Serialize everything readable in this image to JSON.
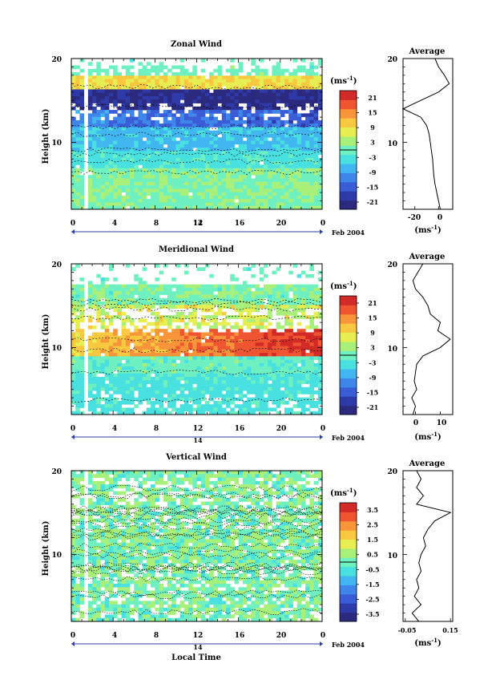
{
  "page": {
    "time_axis_label": "Local Time"
  },
  "chart_data": [
    {
      "id": "zonal",
      "type": "heatmap",
      "title": "Zonal Wind",
      "ylabel": "Height (km)",
      "xlabel": "",
      "x_ticks": [
        "0",
        "4",
        "8",
        "12",
        "16",
        "20",
        "0"
      ],
      "y_ticks": [
        "10",
        "20"
      ],
      "ylim": [
        2,
        20
      ],
      "xlim_hours": [
        0,
        24
      ],
      "date_axis": {
        "day": "14",
        "month_year": "Feb 2004"
      },
      "colorbar": {
        "unit": "(ms",
        "unit_exp": "-1",
        "unit_close": ")",
        "ticks": [
          "21",
          "15",
          "9",
          "3",
          "-3",
          "-9",
          "-15",
          "-21"
        ],
        "range": [
          -24,
          24
        ]
      },
      "average_panel": {
        "title": "Average",
        "xlabel": "(ms",
        "xlabel_exp": "-1",
        "xlabel_close": ")",
        "x_ticks": [
          "-20",
          "0"
        ],
        "y_ticks": [
          "10",
          "20"
        ],
        "xlim": [
          -30,
          12
        ],
        "profile": [
          {
            "h": 2.0,
            "v": 1.5
          },
          {
            "h": 3.0,
            "v": 0.0
          },
          {
            "h": 4.0,
            "v": -1.5
          },
          {
            "h": 5.0,
            "v": -3.0
          },
          {
            "h": 6.0,
            "v": -4.0
          },
          {
            "h": 7.0,
            "v": -4.5
          },
          {
            "h": 8.0,
            "v": -5.0
          },
          {
            "h": 9.0,
            "v": -6.0
          },
          {
            "h": 10.0,
            "v": -7.0
          },
          {
            "h": 11.0,
            "v": -8.0
          },
          {
            "h": 12.0,
            "v": -10.0
          },
          {
            "h": 13.0,
            "v": -15.0
          },
          {
            "h": 14.0,
            "v": -30.0
          },
          {
            "h": 15.0,
            "v": -15.0
          },
          {
            "h": 16.0,
            "v": 0.0
          },
          {
            "h": 17.0,
            "v": 9.0
          },
          {
            "h": 18.0,
            "v": 5.0
          },
          {
            "h": 19.0,
            "v": 0.0
          },
          {
            "h": 20.0,
            "v": -3.0
          }
        ]
      }
    },
    {
      "id": "meridional",
      "type": "heatmap",
      "title": "Meridional Wind",
      "ylabel": "Height (km)",
      "xlabel": "",
      "x_ticks": [
        "0",
        "4",
        "8",
        "12",
        "16",
        "20",
        "0"
      ],
      "y_ticks": [
        "10",
        "20"
      ],
      "ylim": [
        2,
        20
      ],
      "xlim_hours": [
        0,
        24
      ],
      "date_axis": {
        "day": "14",
        "month_year": "Feb 2004"
      },
      "colorbar": {
        "unit": "(ms",
        "unit_exp": "-1",
        "unit_close": ")",
        "ticks": [
          "21",
          "15",
          "9",
          "3",
          "-3",
          "-9",
          "-15",
          "-21"
        ],
        "range": [
          -24,
          24
        ]
      },
      "average_panel": {
        "title": "Average",
        "xlabel": "(ms",
        "xlabel_exp": "-1",
        "xlabel_close": ")",
        "x_ticks": [
          "0",
          "10"
        ],
        "y_ticks": [
          "10",
          "20"
        ],
        "xlim": [
          -5,
          15
        ],
        "profile": [
          {
            "h": 2.0,
            "v": -1.0
          },
          {
            "h": 3.0,
            "v": 0.0
          },
          {
            "h": 4.0,
            "v": -1.5
          },
          {
            "h": 5.0,
            "v": 0.5
          },
          {
            "h": 6.0,
            "v": -0.5
          },
          {
            "h": 7.0,
            "v": 0.0
          },
          {
            "h": 8.0,
            "v": 0.5
          },
          {
            "h": 9.0,
            "v": 3.0
          },
          {
            "h": 10.0,
            "v": 10.0
          },
          {
            "h": 11.0,
            "v": 14.0
          },
          {
            "h": 12.0,
            "v": 9.0
          },
          {
            "h": 13.0,
            "v": 10.0
          },
          {
            "h": 14.0,
            "v": 6.0
          },
          {
            "h": 15.0,
            "v": 5.0
          },
          {
            "h": 16.0,
            "v": 3.0
          },
          {
            "h": 17.0,
            "v": 0.0
          },
          {
            "h": 18.0,
            "v": -1.0
          },
          {
            "h": 19.0,
            "v": 1.0
          },
          {
            "h": 20.0,
            "v": 3.0
          }
        ]
      }
    },
    {
      "id": "vertical",
      "type": "heatmap",
      "title": "Vertical Wind",
      "ylabel": "Height (km)",
      "xlabel": "Local Time",
      "x_ticks": [
        "0",
        "4",
        "8",
        "12",
        "16",
        "20",
        "0"
      ],
      "y_ticks": [
        "10",
        "20"
      ],
      "ylim": [
        2,
        20
      ],
      "xlim_hours": [
        0,
        24
      ],
      "date_axis": {
        "day": "14",
        "month_year": "Feb 2004"
      },
      "colorbar": {
        "unit": "(ms",
        "unit_exp": "-1",
        "unit_close": ")",
        "ticks": [
          "3.5",
          "2.5",
          "1.5",
          "0.5",
          "-0.5",
          "-1.5",
          "-2.5",
          "-3.5"
        ],
        "range": [
          -4,
          4
        ]
      },
      "average_panel": {
        "title": "Average",
        "xlabel": "(ms",
        "xlabel_exp": "-1",
        "xlabel_close": ")",
        "x_ticks": [
          "-0.05",
          "0.15"
        ],
        "y_ticks": [
          "10",
          "20"
        ],
        "xlim": [
          -0.06,
          0.16
        ],
        "profile": [
          {
            "h": 2.0,
            "v": 0.01
          },
          {
            "h": 3.0,
            "v": -0.02
          },
          {
            "h": 4.0,
            "v": 0.02
          },
          {
            "h": 5.0,
            "v": -0.01
          },
          {
            "h": 6.0,
            "v": 0.01
          },
          {
            "h": 7.0,
            "v": 0.0
          },
          {
            "h": 8.0,
            "v": 0.02
          },
          {
            "h": 9.0,
            "v": 0.01
          },
          {
            "h": 10.0,
            "v": 0.02
          },
          {
            "h": 11.0,
            "v": 0.04
          },
          {
            "h": 12.0,
            "v": 0.03
          },
          {
            "h": 13.0,
            "v": 0.05
          },
          {
            "h": 14.0,
            "v": 0.08
          },
          {
            "h": 15.0,
            "v": 0.15
          },
          {
            "h": 16.0,
            "v": 0.0
          },
          {
            "h": 17.0,
            "v": 0.03
          },
          {
            "h": 18.0,
            "v": 0.0
          },
          {
            "h": 19.0,
            "v": 0.02
          },
          {
            "h": 20.0,
            "v": 0.0
          }
        ]
      }
    }
  ]
}
